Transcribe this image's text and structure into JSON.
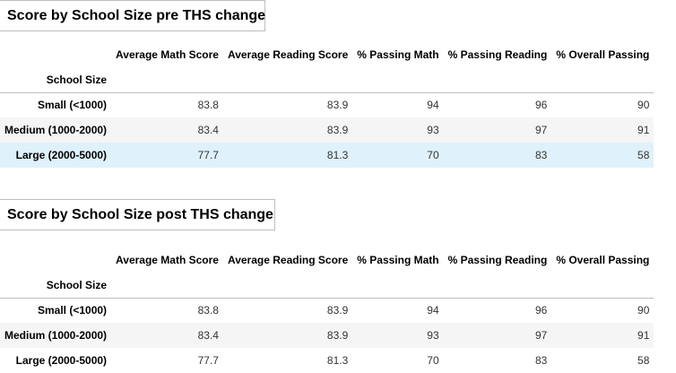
{
  "tables": [
    {
      "title": "Score by School Size pre THS change",
      "index_label": "School Size",
      "columns": [
        "Average Math Score",
        "Average Reading Score",
        "% Passing Math",
        "% Passing Reading",
        "% Overall Passing"
      ],
      "rows": [
        {
          "label": "Small (<1000)",
          "values": [
            "83.8",
            "83.9",
            "94",
            "96",
            "90"
          ]
        },
        {
          "label": "Medium (1000-2000)",
          "values": [
            "83.4",
            "83.9",
            "93",
            "97",
            "91"
          ]
        },
        {
          "label": "Large (2000-5000)",
          "values": [
            "77.7",
            "81.3",
            "70",
            "83",
            "58"
          ]
        }
      ]
    },
    {
      "title": "Score by School Size post THS change",
      "index_label": "School Size",
      "columns": [
        "Average Math Score",
        "Average Reading Score",
        "% Passing Math",
        "% Passing Reading",
        "% Overall Passing"
      ],
      "rows": [
        {
          "label": "Small (<1000)",
          "values": [
            "83.8",
            "83.9",
            "94",
            "96",
            "90"
          ]
        },
        {
          "label": "Medium (1000-2000)",
          "values": [
            "83.4",
            "83.9",
            "93",
            "97",
            "91"
          ]
        },
        {
          "label": "Large (2000-5000)",
          "values": [
            "77.7",
            "81.3",
            "70",
            "83",
            "58"
          ]
        }
      ]
    }
  ],
  "colors": {
    "row_stripe": "#f5f5f5",
    "row_hover": "#dff1fb",
    "border": "#bdbdbd"
  }
}
